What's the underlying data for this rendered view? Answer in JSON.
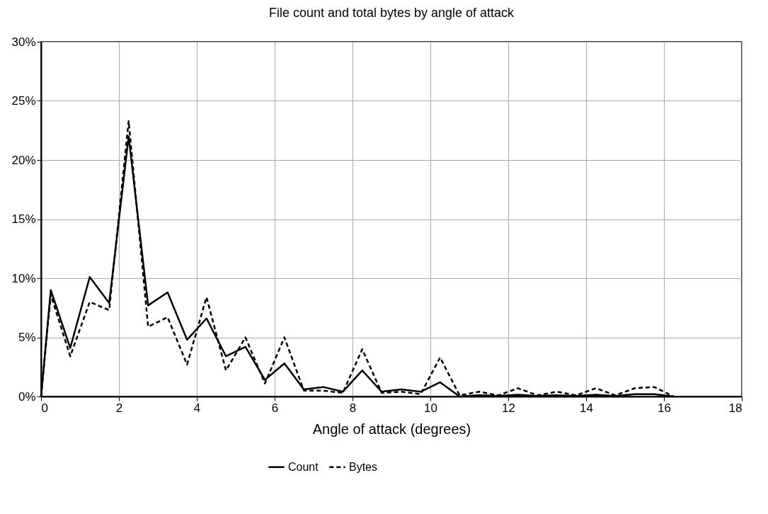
{
  "chart_data": {
    "type": "line",
    "title": "File count and total bytes by angle of attack",
    "xlabel": "Angle of attack (degrees)",
    "x": [
      0,
      0.25,
      0.75,
      1.25,
      1.75,
      2.25,
      2.75,
      3.25,
      3.75,
      4.25,
      4.75,
      5.25,
      5.75,
      6.25,
      6.75,
      7.25,
      7.75,
      8.25,
      8.75,
      9.25,
      9.75,
      10.25,
      10.75,
      11.25,
      11.75,
      12.25,
      12.75,
      13.25,
      13.75,
      14.25,
      14.75,
      15.25,
      15.75,
      16.25
    ],
    "series": [
      {
        "name": "Count",
        "color": "#000000",
        "line_style": "solid",
        "values": [
          0,
          9.0,
          4.1,
          10.1,
          7.9,
          22.0,
          7.7,
          8.8,
          4.8,
          6.6,
          3.4,
          4.2,
          1.4,
          2.8,
          0.6,
          0.8,
          0.4,
          2.2,
          0.4,
          0.6,
          0.4,
          1.2,
          0.0,
          0.1,
          0.05,
          0.15,
          0.05,
          0.1,
          0.05,
          0.15,
          0.05,
          0.2,
          0.2,
          0.0
        ]
      },
      {
        "name": "Bytes",
        "color": "#000000",
        "line_style": "dashed",
        "values": [
          0,
          8.6,
          3.4,
          8.0,
          7.3,
          23.3,
          5.9,
          6.7,
          2.7,
          8.4,
          2.2,
          5.0,
          1.1,
          5.0,
          0.5,
          0.5,
          0.3,
          4.0,
          0.3,
          0.4,
          0.2,
          3.3,
          0.1,
          0.4,
          0.1,
          0.7,
          0.1,
          0.4,
          0.1,
          0.7,
          0.1,
          0.7,
          0.8,
          0.0
        ]
      }
    ],
    "xlim": [
      0,
      18
    ],
    "xticks": [
      0,
      2,
      4,
      6,
      8,
      10,
      12,
      14,
      16,
      18
    ],
    "ylim": [
      0,
      30
    ],
    "yticks": [
      {
        "value": 0,
        "label": "0%"
      },
      {
        "value": 5,
        "label": "5%"
      },
      {
        "value": 10,
        "label": "10%"
      },
      {
        "value": 15,
        "label": "15%"
      },
      {
        "value": 20,
        "label": "20%"
      },
      {
        "value": 25,
        "label": "25%"
      },
      {
        "value": 30,
        "label": "30%"
      }
    ],
    "grid": true,
    "legend": "bottom"
  }
}
